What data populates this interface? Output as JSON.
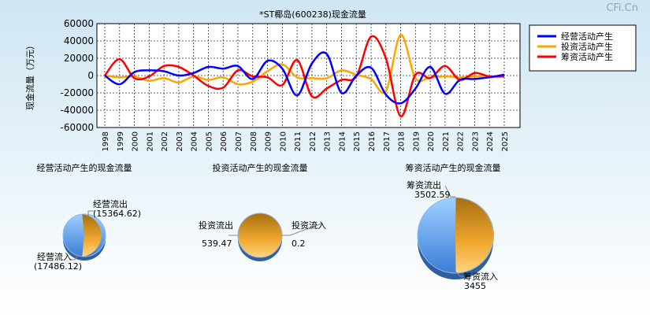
{
  "watermark": "CFi.Cn",
  "chart_data": [
    {
      "type": "line",
      "title": "*ST椰岛(600238)现金流量",
      "ylabel": "现金流量（万元）",
      "ylim": [
        -60000,
        60000
      ],
      "yticks": [
        60000,
        40000,
        20000,
        0,
        -20000,
        -40000,
        -60000
      ],
      "x": [
        "1998",
        "1999",
        "2000",
        "2001",
        "2002",
        "2003",
        "2004",
        "2005",
        "2006",
        "2007",
        "2008",
        "2009",
        "2010",
        "2011",
        "2012",
        "2013",
        "2014",
        "2015",
        "2016",
        "2017",
        "2018",
        "2019",
        "2020",
        "2021",
        "2022",
        "2023",
        "2024",
        "2025"
      ],
      "grid": true,
      "legend": "top-right",
      "series": [
        {
          "name": "经营活动产生",
          "color": "#0000ff",
          "values": [
            0,
            -10000,
            4000,
            6000,
            5000,
            0,
            3000,
            10000,
            8000,
            11000,
            -4000,
            17000,
            8000,
            -23000,
            14000,
            25000,
            -20000,
            0,
            9000,
            -22000,
            -32000,
            -15000,
            10000,
            -21000,
            -5000,
            -4000,
            -2000,
            1000
          ]
        },
        {
          "name": "投资活动产生",
          "color": "#ffa500",
          "values": [
            0,
            -2000,
            -1000,
            -6000,
            -3000,
            -8000,
            -1000,
            -5000,
            -2000,
            -10000,
            -7000,
            5000,
            13000,
            -2000,
            -3000,
            -3000,
            6000,
            1000,
            -4000,
            -18000,
            47000,
            -3000,
            -2000,
            -1000,
            -2000,
            -1000,
            -1000,
            -1000
          ]
        },
        {
          "name": "筹资活动产生",
          "color": "#ff0000",
          "values": [
            0,
            19000,
            -3000,
            -1000,
            11000,
            10000,
            0,
            -12000,
            -14000,
            6000,
            -1000,
            -2000,
            -11000,
            18000,
            -24000,
            -15000,
            -5000,
            -1000,
            45000,
            20000,
            -47000,
            1000,
            -3000,
            11000,
            -5000,
            3000,
            -1000,
            -1000
          ]
        }
      ]
    },
    {
      "type": "pie",
      "title": "经营活动产生的现金流量",
      "slices": [
        {
          "label": "经营流出",
          "value": 15364.62,
          "display": "(15364.62)",
          "color": "#f0a830"
        },
        {
          "label": "经营流入",
          "value": 17486.12,
          "display": "(17486.12)",
          "color": "#4a90e2"
        }
      ]
    },
    {
      "type": "pie",
      "title": "投资活动产生的现金流量",
      "slices": [
        {
          "label": "投资流出",
          "value": 539.47,
          "display": "539.47",
          "color": "#f0a830"
        },
        {
          "label": "投资流入",
          "value": 0.2,
          "display": "0.2",
          "color": "#4a90e2"
        }
      ]
    },
    {
      "type": "pie",
      "title": "筹资活动产生的现金流量",
      "slices": [
        {
          "label": "筹资流出",
          "value": 3502.59,
          "display": "3502.59",
          "color": "#f0a830"
        },
        {
          "label": "筹资流入",
          "value": 3455,
          "display": "3455",
          "color": "#4a90e2"
        }
      ]
    }
  ]
}
